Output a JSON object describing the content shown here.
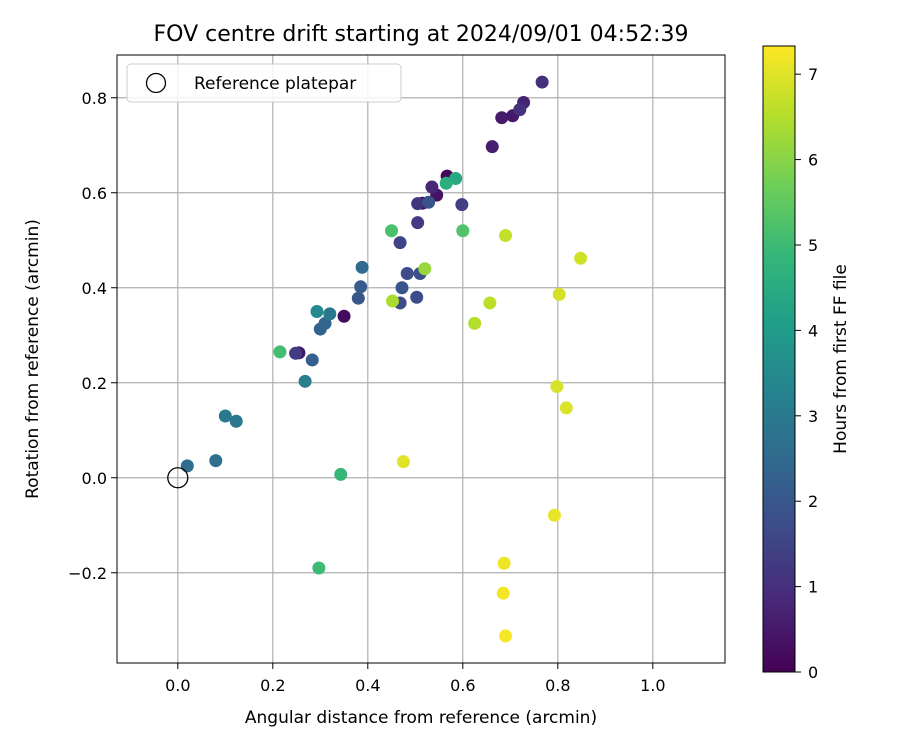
{
  "chart_data": {
    "type": "scatter",
    "title": "FOV centre drift starting at 2024/09/01 04:52:39",
    "xlabel": "Angular distance from reference (arcmin)",
    "ylabel": "Rotation from reference (arcmin)",
    "xlim": [
      -0.128,
      1.152
    ],
    "ylim": [
      -0.39,
      0.89
    ],
    "xticks": [
      0.0,
      0.2,
      0.4,
      0.6,
      0.8,
      1.0
    ],
    "xtick_labels": [
      "0.0",
      "0.2",
      "0.4",
      "0.6",
      "0.8",
      "1.0"
    ],
    "yticks": [
      -0.2,
      0.0,
      0.2,
      0.4,
      0.6,
      0.8
    ],
    "ytick_labels": [
      "−0.2",
      "0.0",
      "0.2",
      "0.4",
      "0.6",
      "0.8"
    ],
    "grid": true,
    "legend": {
      "placement": "top-left",
      "entries": [
        {
          "label": "Reference platepar",
          "marker": "open-circle"
        }
      ]
    },
    "reference_point": {
      "x": 0.0,
      "y": 0.0
    },
    "colorbar": {
      "label": "Hours from first FF file",
      "min": 0,
      "max": 7.33,
      "ticks": [
        0,
        1,
        2,
        3,
        4,
        5,
        6,
        7
      ],
      "tick_labels": [
        "0",
        "1",
        "2",
        "3",
        "4",
        "5",
        "6",
        "7"
      ],
      "colormap": "viridis",
      "stops": [
        "#440154",
        "#482878",
        "#3e4989",
        "#31688e",
        "#26828e",
        "#1f9e89",
        "#35b779",
        "#6ece58",
        "#b5de2b",
        "#fde725"
      ]
    },
    "points": [
      {
        "x": 0.567,
        "y": 0.635,
        "t": 0.1
      },
      {
        "x": 0.35,
        "y": 0.34,
        "t": 0.2
      },
      {
        "x": 0.515,
        "y": 0.578,
        "t": 0.3
      },
      {
        "x": 0.545,
        "y": 0.595,
        "t": 0.35
      },
      {
        "x": 0.255,
        "y": 0.263,
        "t": 0.45
      },
      {
        "x": 0.705,
        "y": 0.762,
        "t": 0.5
      },
      {
        "x": 0.682,
        "y": 0.758,
        "t": 0.55
      },
      {
        "x": 0.662,
        "y": 0.697,
        "t": 0.6
      },
      {
        "x": 0.728,
        "y": 0.79,
        "t": 0.7
      },
      {
        "x": 0.535,
        "y": 0.612,
        "t": 0.8
      },
      {
        "x": 0.767,
        "y": 0.833,
        "t": 1.0
      },
      {
        "x": 0.72,
        "y": 0.775,
        "t": 1.05
      },
      {
        "x": 0.505,
        "y": 0.577,
        "t": 1.1
      },
      {
        "x": 0.505,
        "y": 0.537,
        "t": 1.25
      },
      {
        "x": 0.248,
        "y": 0.262,
        "t": 1.3
      },
      {
        "x": 0.598,
        "y": 0.575,
        "t": 1.4
      },
      {
        "x": 0.468,
        "y": 0.495,
        "t": 1.5
      },
      {
        "x": 0.483,
        "y": 0.43,
        "t": 1.65
      },
      {
        "x": 0.468,
        "y": 0.368,
        "t": 1.7
      },
      {
        "x": 0.503,
        "y": 0.38,
        "t": 1.75
      },
      {
        "x": 0.51,
        "y": 0.43,
        "t": 1.8
      },
      {
        "x": 0.528,
        "y": 0.58,
        "t": 1.9
      },
      {
        "x": 0.472,
        "y": 0.4,
        "t": 1.95
      },
      {
        "x": 0.38,
        "y": 0.378,
        "t": 2.0
      },
      {
        "x": 0.385,
        "y": 0.402,
        "t": 2.1
      },
      {
        "x": 0.283,
        "y": 0.248,
        "t": 2.2
      },
      {
        "x": 0.3,
        "y": 0.313,
        "t": 2.3
      },
      {
        "x": 0.31,
        "y": 0.325,
        "t": 2.4
      },
      {
        "x": 0.388,
        "y": 0.443,
        "t": 2.5
      },
      {
        "x": 0.02,
        "y": 0.025,
        "t": 2.6
      },
      {
        "x": 0.08,
        "y": 0.036,
        "t": 2.7
      },
      {
        "x": 0.123,
        "y": 0.119,
        "t": 2.9
      },
      {
        "x": 0.32,
        "y": 0.345,
        "t": 2.95
      },
      {
        "x": 0.1,
        "y": 0.13,
        "t": 3.0
      },
      {
        "x": 0.268,
        "y": 0.203,
        "t": 3.1
      },
      {
        "x": 0.293,
        "y": 0.35,
        "t": 3.5
      },
      {
        "x": 0.585,
        "y": 0.63,
        "t": 4.4
      },
      {
        "x": 0.565,
        "y": 0.62,
        "t": 4.6
      },
      {
        "x": 0.343,
        "y": 0.007,
        "t": 4.9
      },
      {
        "x": 0.297,
        "y": -0.19,
        "t": 5.0
      },
      {
        "x": 0.215,
        "y": 0.265,
        "t": 5.1
      },
      {
        "x": 0.45,
        "y": 0.52,
        "t": 5.2
      },
      {
        "x": 0.6,
        "y": 0.52,
        "t": 5.3
      },
      {
        "x": 0.52,
        "y": 0.44,
        "t": 6.2
      },
      {
        "x": 0.452,
        "y": 0.372,
        "t": 6.4
      },
      {
        "x": 0.625,
        "y": 0.325,
        "t": 6.5
      },
      {
        "x": 0.657,
        "y": 0.368,
        "t": 6.6
      },
      {
        "x": 0.69,
        "y": 0.51,
        "t": 6.7
      },
      {
        "x": 0.848,
        "y": 0.462,
        "t": 6.8
      },
      {
        "x": 0.803,
        "y": 0.386,
        "t": 6.85
      },
      {
        "x": 0.798,
        "y": 0.192,
        "t": 6.9
      },
      {
        "x": 0.818,
        "y": 0.147,
        "t": 6.95
      },
      {
        "x": 0.475,
        "y": 0.034,
        "t": 7.0
      },
      {
        "x": 0.793,
        "y": -0.079,
        "t": 7.1
      },
      {
        "x": 0.687,
        "y": -0.18,
        "t": 7.15
      },
      {
        "x": 0.685,
        "y": -0.243,
        "t": 7.2
      },
      {
        "x": 0.69,
        "y": -0.333,
        "t": 7.25
      }
    ]
  }
}
